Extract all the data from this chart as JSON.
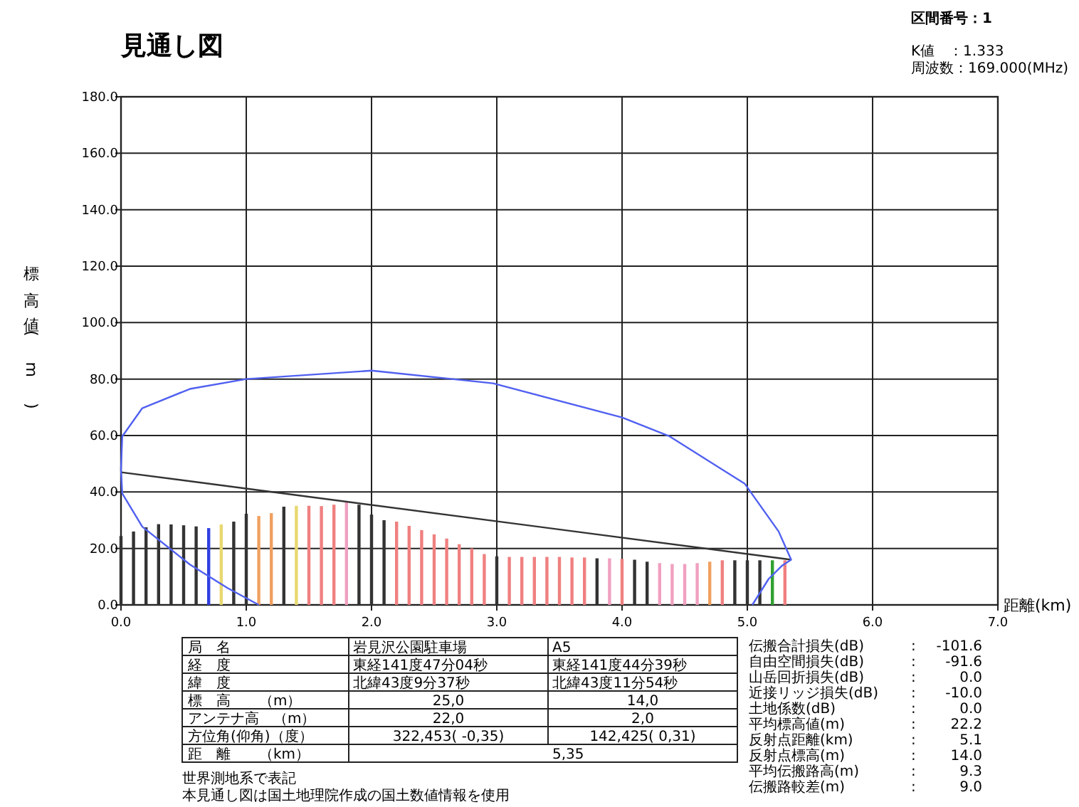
{
  "chart_data": {
    "type": "bar",
    "title": "見通し図",
    "xlabel": "距離(km)",
    "ylabel": "標高値(m)",
    "xlim": [
      0,
      7
    ],
    "ylim": [
      0,
      180
    ],
    "xticks": [
      {
        "value": 0,
        "label": "0.0"
      },
      {
        "value": 1,
        "label": "1.0"
      },
      {
        "value": 2,
        "label": "2.0"
      },
      {
        "value": 3,
        "label": "3.0"
      },
      {
        "value": 4,
        "label": "4.0"
      },
      {
        "value": 5,
        "label": "5.0"
      },
      {
        "value": 6,
        "label": "6.0"
      },
      {
        "value": 7,
        "label": "7.0"
      }
    ],
    "yticks": [
      {
        "value": 0,
        "label": "0.0"
      },
      {
        "value": 20,
        "label": "20.0"
      },
      {
        "value": 40,
        "label": "40.0"
      },
      {
        "value": 60,
        "label": "60.0"
      },
      {
        "value": 80,
        "label": "80.0"
      },
      {
        "value": 100,
        "label": "100.0"
      },
      {
        "value": 120,
        "label": "120.0"
      },
      {
        "value": 140,
        "label": "140.0"
      },
      {
        "value": 160,
        "label": "160.0"
      },
      {
        "value": 180,
        "label": "180.0"
      }
    ],
    "grid": true,
    "series": [
      {
        "x": [
          0,
          0.1,
          0.2,
          0.3,
          0.4,
          0.5,
          0.6,
          0.7,
          0.8,
          0.9,
          1.0,
          1.1,
          1.2,
          1.3,
          1.4,
          1.5,
          1.6,
          1.7,
          1.8,
          1.9,
          2.0,
          2.1,
          2.2,
          2.3,
          2.4,
          2.5,
          2.6,
          2.7,
          2.8,
          2.9,
          3.0,
          3.1,
          3.2,
          3.3,
          3.4,
          3.5,
          3.6,
          3.7,
          3.8,
          3.9,
          4.0,
          4.1,
          4.2,
          4.3,
          4.4,
          4.5,
          4.6,
          4.7,
          4.8,
          4.9,
          5.0,
          5.1,
          5.2,
          5.3
        ],
        "values": [
          24.4,
          26,
          27.5,
          28.6,
          28.5,
          28.2,
          27.8,
          27.2,
          28.5,
          29.5,
          32.3,
          31.5,
          32.5,
          34.8,
          35.1,
          35.1,
          35,
          35.5,
          36.5,
          35.5,
          32,
          30,
          29.5,
          28,
          26.5,
          25,
          23.5,
          21.5,
          20,
          18,
          17.2,
          17,
          17,
          17,
          17,
          17,
          16.8,
          16.8,
          16.5,
          16.5,
          16.3,
          16,
          15.3,
          14.8,
          14.5,
          14.5,
          14.8,
          15.3,
          15.8,
          15.8,
          15.8,
          15.8,
          15.8,
          15.8
        ],
        "colors": [
          "#333333",
          "#333333",
          "#333333",
          "#333333",
          "#333333",
          "#333333",
          "#333333",
          "#3040e0",
          "#e8d870",
          "#333333",
          "#333333",
          "#f0a060",
          "#f0a060",
          "#333333",
          "#e8d870",
          "#f08080",
          "#f08080",
          "#f08080",
          "#f0a0c0",
          "#333333",
          "#333333",
          "#333333",
          "#f08080",
          "#f08080",
          "#f08080",
          "#f08080",
          "#f08080",
          "#f08080",
          "#f08080",
          "#f08080",
          "#333333",
          "#f08080",
          "#f08080",
          "#f08080",
          "#f08080",
          "#f08080",
          "#f08080",
          "#f08080",
          "#333333",
          "#f0a0c0",
          "#f08080",
          "#333333",
          "#333333",
          "#f0a0c0",
          "#f0a0c0",
          "#f0a0c0",
          "#f0a0c0",
          "#f0a060",
          "#f08080",
          "#333333",
          "#333333",
          "#333333",
          "#30a030",
          "#f08080"
        ]
      },
      {
        "type": "line",
        "color": "#333333",
        "x": [
          0,
          5.35
        ],
        "values": [
          47,
          16
        ]
      },
      {
        "type": "line",
        "color": "#5060f0",
        "x": [
          5.04,
          5.17,
          5.28,
          5.35,
          5.25,
          4.98,
          4.38,
          4.0,
          2.97,
          2.0,
          1.0,
          0.55,
          0.17,
          0.01,
          0,
          0.01,
          0.17,
          0.55,
          0.85,
          1.1
        ],
        "values": [
          0,
          9.2,
          14,
          16,
          26,
          42.9,
          59.7,
          66.4,
          78.5,
          83,
          80,
          76.5,
          69.7,
          59.7,
          47.9,
          39.5,
          27.7,
          14.3,
          6,
          0
        ]
      }
    ],
    "annotations": [
      "区間番号：1",
      "K値　：1.333",
      "周波数：169.000(MHz)",
      "局　名",
      "岩見沢公園駐車場",
      "A5",
      "経　度",
      "東経141度47分04秒",
      "東経141度44分39秒",
      "緯　度",
      "北緯43度9分37秒",
      "北緯43度11分54秒",
      "標　高　　（m）",
      "25,0",
      "14,0",
      "アンテナ高　（m）",
      "22,0",
      "2,0",
      "方位角(仰角)（度）",
      "322,453( -0,35)",
      "142,425(  0,31)",
      "距　離　　（km）",
      "5,35",
      "世界測地系で表記",
      "本見通し図は国土地理院作成の国土数値情報を使用",
      "伝搬合計損失(dB)",
      ":",
      "-101.6",
      "自由空間損失(dB)",
      ":",
      "-91.6",
      "山岳回折損失(dB)",
      ":",
      "0.0",
      "近接リッジ損失(dB)",
      ":",
      "-10.0",
      "土地係数(dB)",
      ":",
      "0.0",
      "平均標高値(m)",
      ":",
      "22.2",
      "反射点距離(km)",
      ":",
      "5.1",
      "反射点標高(m)",
      ":",
      "14.0",
      "平均伝搬路高(m)",
      ":",
      "9.3",
      "伝搬路較差(m)",
      ":",
      "9.0"
    ]
  }
}
